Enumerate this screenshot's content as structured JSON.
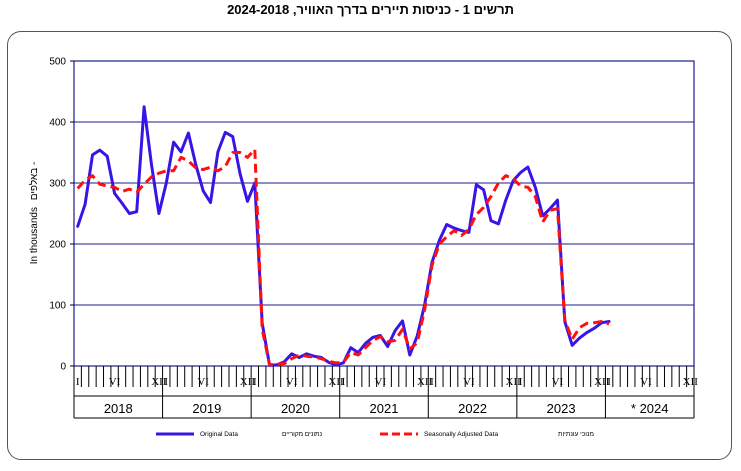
{
  "title": "תרשים 1 - כניסות תיירים בדרך האוויר, 2024-2018",
  "chart_data": {
    "type": "line",
    "ylabel_en": "In thousands",
    "ylabel_he": "באלפים -",
    "ylim": [
      0,
      500
    ],
    "yticks": [
      "0",
      "100",
      "200",
      "300",
      "400",
      "500"
    ],
    "grid": true,
    "legend_position": "bottom",
    "month_ticks": [
      "I",
      "VI",
      "XII",
      "I",
      "VI",
      "XII",
      "I",
      "VI",
      "XII",
      "I",
      "VI",
      "XII",
      "I",
      "VI",
      "XII",
      "I",
      "VI",
      "XII",
      "I",
      "VI",
      "XII"
    ],
    "month_tick_positions": [
      1,
      6,
      12,
      13,
      18,
      24,
      25,
      30,
      36,
      37,
      42,
      48,
      49,
      54,
      60,
      61,
      66,
      72,
      73,
      78,
      84
    ],
    "years": [
      "2018",
      "2019",
      "2020",
      "2021",
      "2022",
      "2023",
      "* 2024"
    ],
    "colors": {
      "original": "#3a14e6",
      "adjusted": "#ff1010",
      "plot_border": "#1c1c8c",
      "grid": "#1c1c8c"
    },
    "series": [
      {
        "name_en": "Original Data",
        "name_he": "נתונים מקוריים",
        "style": "solid",
        "values": [
          229,
          265,
          346,
          354,
          344,
          283,
          267,
          250,
          253,
          425,
          330,
          250,
          300,
          367,
          351,
          382,
          330,
          287,
          268,
          351,
          383,
          376,
          315,
          270,
          300,
          70,
          1,
          2,
          7,
          20,
          14,
          20,
          16,
          14,
          6,
          2,
          5,
          30,
          22,
          37,
          47,
          50,
          32,
          58,
          74,
          18,
          49,
          100,
          170,
          206,
          232,
          226,
          222,
          219,
          297,
          289,
          238,
          233,
          272,
          304,
          317,
          326,
          293,
          246,
          258,
          272,
          73,
          34,
          46,
          55,
          62,
          71,
          73
        ]
      },
      {
        "name_en": "Seasonally Adjusted Data",
        "name_he": "מנוכי עונתיות",
        "style": "dashed",
        "values": [
          291,
          305,
          312,
          298,
          295,
          293,
          286,
          290,
          285,
          298,
          310,
          316,
          320,
          320,
          342,
          336,
          325,
          322,
          326,
          320,
          327,
          350,
          350,
          342,
          355,
          60,
          2,
          3,
          4,
          12,
          18,
          16,
          15,
          12,
          8,
          5,
          6,
          22,
          18,
          30,
          42,
          48,
          40,
          42,
          60,
          28,
          38,
          92,
          165,
          200,
          212,
          222,
          214,
          224,
          248,
          260,
          278,
          300,
          312,
          307,
          295,
          293,
          278,
          236,
          255,
          258,
          75,
          44,
          63,
          70,
          71,
          73,
          69
        ]
      }
    ]
  }
}
